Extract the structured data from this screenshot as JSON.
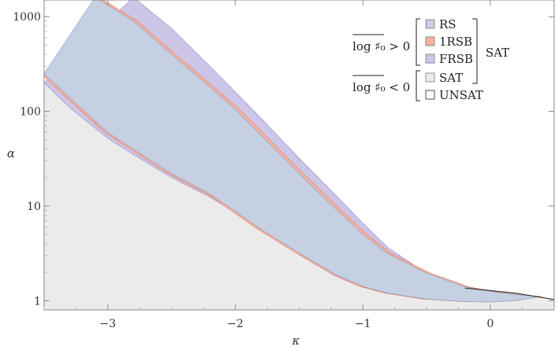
{
  "chart_data": {
    "type": "area",
    "xlabel": "κ",
    "ylabel": "α",
    "xlim": [
      -3.5,
      0.5
    ],
    "ylim": [
      0.8,
      1500
    ],
    "y_scale": "log",
    "x_ticks": [
      -3,
      -2,
      -1,
      0
    ],
    "x_tick_labels": [
      "−3",
      "−2",
      "−1",
      "0"
    ],
    "y_ticks": [
      1,
      10,
      100,
      1000
    ],
    "y_tick_labels": [
      "1",
      "10",
      "100",
      "1000"
    ],
    "grid": false,
    "legend_position": "top-right",
    "legend": {
      "group_pos_label": "log ♯₀ > 0",
      "group_neg_label": "log ♯₀ < 0",
      "sat_label": "SAT",
      "entries": [
        {
          "key": "rs",
          "label": "RS",
          "color": "#c5d0e2"
        },
        {
          "key": "1rsb",
          "label": "1RSB",
          "color": "#f4b4a0"
        },
        {
          "key": "frsb",
          "label": "FRSB",
          "color": "#cdc6e6"
        },
        {
          "key": "sat",
          "label": "SAT",
          "color": "#ebebeb"
        },
        {
          "key": "unsat",
          "label": "UNSAT",
          "color": "#ffffff"
        }
      ]
    },
    "series": [
      {
        "key": "sat_boundary",
        "x": [
          -3.5,
          -3.3,
          -3.0,
          -2.8,
          -2.5,
          -2.2,
          -2.0,
          -1.8,
          -1.5,
          -1.2,
          -1.0,
          -0.8,
          -0.5,
          -0.2,
          0.0,
          0.2,
          0.5
        ],
        "y": [
          200,
          110,
          52,
          35,
          20,
          12.5,
          9.0,
          6.4,
          3.9,
          2.6,
          2.05,
          1.75,
          1.52,
          1.36,
          1.28,
          1.2,
          1.03
        ]
      },
      {
        "key": "frsb_upper",
        "x": [
          -2.8,
          -2.5,
          -2.2,
          -2.0,
          -1.8,
          -1.5,
          -1.2,
          -1.0,
          -0.8,
          -0.5,
          -0.2,
          0.0,
          0.2,
          0.38
        ],
        "y": [
          1600,
          750,
          300,
          160,
          85,
          32,
          12.5,
          6.6,
          3.6,
          1.95,
          1.4,
          1.25,
          1.16,
          1.1
        ]
      },
      {
        "key": "rs_upper",
        "x": [
          -3.1,
          -2.8,
          -2.5,
          -2.2,
          -2.0,
          -1.8,
          -1.5,
          -1.2,
          -1.0,
          -0.8,
          -0.5,
          -0.2,
          0.0,
          0.2,
          0.38
        ],
        "y": [
          1600,
          900,
          400,
          180,
          105,
          56,
          22,
          9.0,
          5.0,
          3.1,
          1.95,
          1.4,
          1.25,
          1.16,
          1.1
        ]
      },
      {
        "key": "rs_lower",
        "x": [
          -3.5,
          -3.3,
          -3.0,
          -2.8,
          -2.5,
          -2.2,
          -2.0,
          -1.8,
          -1.5,
          -1.2,
          -1.0,
          -0.8,
          -0.5,
          -0.2,
          0.0,
          0.2,
          0.38
        ],
        "y": [
          250,
          140,
          60,
          40,
          22,
          13.5,
          8.8,
          5.7,
          3.2,
          1.85,
          1.42,
          1.2,
          1.04,
          0.98,
          0.97,
          1.0,
          1.1
        ]
      },
      {
        "key": "frsb_lower",
        "x": [
          -3.5,
          -3.3,
          -3.0,
          -2.8,
          -2.5,
          -2.2,
          -2.0,
          -1.8,
          -1.5,
          -1.2,
          -1.0,
          -0.8,
          -0.5,
          -0.2,
          0.0,
          0.2,
          0.38
        ],
        "y": [
          200,
          110,
          52,
          35,
          20,
          12.5,
          8.5,
          5.5,
          3.1,
          1.8,
          1.4,
          1.19,
          1.04,
          0.98,
          0.97,
          1.0,
          1.1
        ]
      }
    ]
  }
}
